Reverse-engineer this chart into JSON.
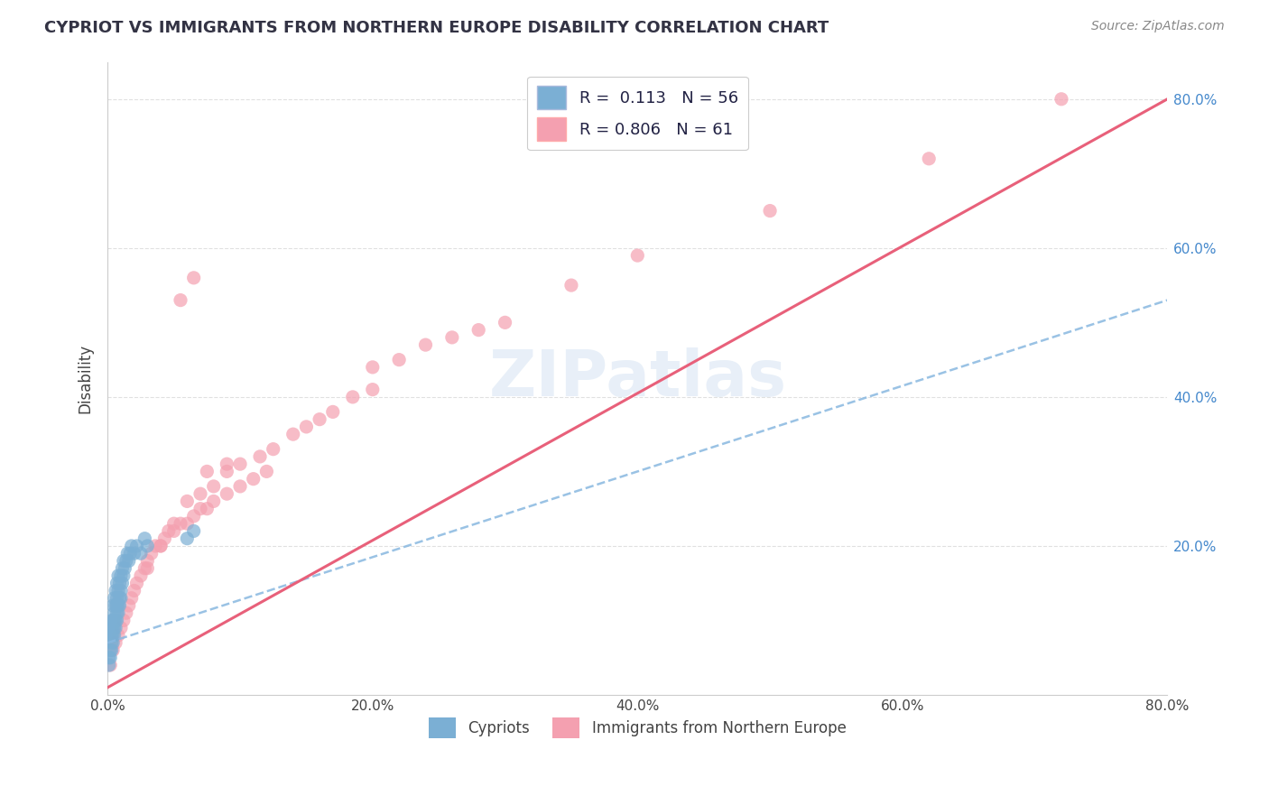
{
  "title": "CYPRIOT VS IMMIGRANTS FROM NORTHERN EUROPE DISABILITY CORRELATION CHART",
  "source": "Source: ZipAtlas.com",
  "ylabel": "Disability",
  "xlim": [
    0.0,
    0.8
  ],
  "ylim": [
    0.0,
    0.85
  ],
  "xticks": [
    0.0,
    0.2,
    0.4,
    0.6,
    0.8
  ],
  "yticks": [
    0.2,
    0.4,
    0.6,
    0.8
  ],
  "xticklabels": [
    "0.0%",
    "20.0%",
    "40.0%",
    "60.0%",
    "80.0%"
  ],
  "yticklabels_right": [
    "20.0%",
    "40.0%",
    "60.0%",
    "80.0%"
  ],
  "cypriot_color": "#7bafd4",
  "cypriot_edge_color": "#5588bb",
  "immigrant_color": "#f4a0b0",
  "immigrant_edge_color": "#e06080",
  "immigrant_line_color": "#e8607a",
  "cypriot_line_color": "#88b8e0",
  "cypriot_R": 0.113,
  "cypriot_N": 56,
  "immigrant_R": 0.806,
  "immigrant_N": 61,
  "legend_labels": [
    "Cypriots",
    "Immigrants from Northern Europe"
  ],
  "background_color": "#ffffff",
  "watermark_text": "ZIPatlas",
  "grid_color": "#dddddd",
  "cypriot_scatter_x": [
    0.001,
    0.002,
    0.002,
    0.003,
    0.003,
    0.003,
    0.004,
    0.004,
    0.004,
    0.005,
    0.005,
    0.005,
    0.006,
    0.006,
    0.006,
    0.007,
    0.007,
    0.007,
    0.008,
    0.008,
    0.008,
    0.009,
    0.009,
    0.01,
    0.01,
    0.011,
    0.011,
    0.012,
    0.012,
    0.013,
    0.014,
    0.015,
    0.016,
    0.017,
    0.018,
    0.02,
    0.022,
    0.025,
    0.028,
    0.03,
    0.001,
    0.002,
    0.003,
    0.003,
    0.004,
    0.004,
    0.005,
    0.005,
    0.006,
    0.007,
    0.007,
    0.008,
    0.009,
    0.01,
    0.06,
    0.065
  ],
  "cypriot_scatter_y": [
    0.05,
    0.06,
    0.08,
    0.07,
    0.09,
    0.1,
    0.08,
    0.1,
    0.12,
    0.09,
    0.11,
    0.13,
    0.1,
    0.12,
    0.14,
    0.11,
    0.13,
    0.15,
    0.12,
    0.14,
    0.16,
    0.13,
    0.15,
    0.14,
    0.16,
    0.15,
    0.17,
    0.16,
    0.18,
    0.17,
    0.18,
    0.19,
    0.18,
    0.19,
    0.2,
    0.19,
    0.2,
    0.19,
    0.21,
    0.2,
    0.04,
    0.05,
    0.06,
    0.08,
    0.07,
    0.09,
    0.08,
    0.1,
    0.09,
    0.1,
    0.12,
    0.11,
    0.12,
    0.13,
    0.21,
    0.22
  ],
  "immigrant_scatter_x": [
    0.002,
    0.004,
    0.006,
    0.008,
    0.01,
    0.012,
    0.014,
    0.016,
    0.018,
    0.02,
    0.022,
    0.025,
    0.028,
    0.03,
    0.033,
    0.036,
    0.04,
    0.043,
    0.046,
    0.05,
    0.055,
    0.06,
    0.065,
    0.07,
    0.075,
    0.08,
    0.09,
    0.1,
    0.11,
    0.12,
    0.03,
    0.04,
    0.05,
    0.06,
    0.07,
    0.08,
    0.09,
    0.1,
    0.115,
    0.125,
    0.14,
    0.15,
    0.16,
    0.17,
    0.185,
    0.2,
    0.055,
    0.065,
    0.075,
    0.09,
    0.2,
    0.22,
    0.24,
    0.26,
    0.28,
    0.3,
    0.35,
    0.4,
    0.5,
    0.72,
    0.62
  ],
  "immigrant_scatter_y": [
    0.04,
    0.06,
    0.07,
    0.08,
    0.09,
    0.1,
    0.11,
    0.12,
    0.13,
    0.14,
    0.15,
    0.16,
    0.17,
    0.18,
    0.19,
    0.2,
    0.2,
    0.21,
    0.22,
    0.22,
    0.23,
    0.23,
    0.24,
    0.25,
    0.25,
    0.26,
    0.27,
    0.28,
    0.29,
    0.3,
    0.17,
    0.2,
    0.23,
    0.26,
    0.27,
    0.28,
    0.3,
    0.31,
    0.32,
    0.33,
    0.35,
    0.36,
    0.37,
    0.38,
    0.4,
    0.41,
    0.53,
    0.56,
    0.3,
    0.31,
    0.44,
    0.45,
    0.47,
    0.48,
    0.49,
    0.5,
    0.55,
    0.59,
    0.65,
    0.8,
    0.72
  ],
  "cypriot_trend_x": [
    0.0,
    0.8
  ],
  "cypriot_trend_y": [
    0.07,
    0.53
  ],
  "immigrant_trend_x": [
    0.0,
    0.8
  ],
  "immigrant_trend_y": [
    0.01,
    0.8
  ]
}
